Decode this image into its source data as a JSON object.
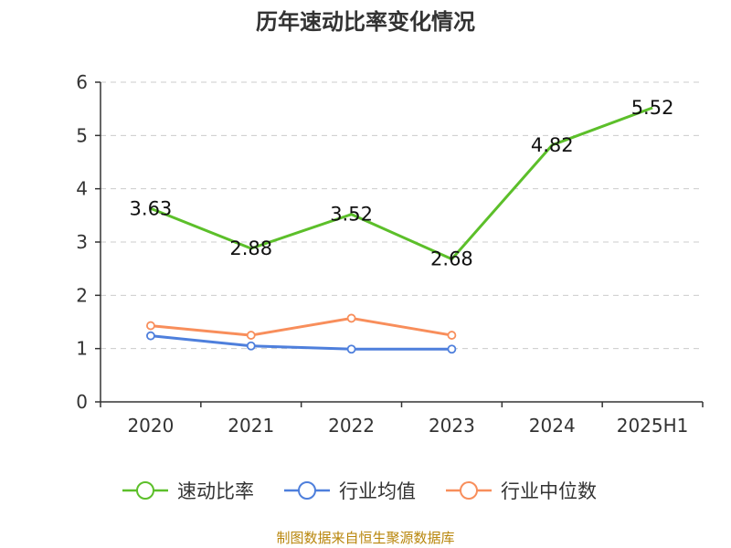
{
  "title": "历年速动比率变化情况",
  "source_note": "制图数据来自恒生聚源数据库",
  "colors": {
    "速动比率": "#5cbf2a",
    "行业均值": "#4e7fdc",
    "行业中位数": "#f88e5b",
    "grid": "#cccccc",
    "axis": "#333333"
  },
  "chart_data": {
    "type": "line",
    "title": "历年速动比率变化情况",
    "categories": [
      "2020",
      "2021",
      "2022",
      "2023",
      "2024",
      "2025H1"
    ],
    "ylim": [
      0,
      6
    ],
    "yticks": [
      0,
      1,
      2,
      3,
      4,
      5,
      6
    ],
    "grid": true,
    "legend_position": "bottom",
    "series": [
      {
        "name": "速动比率",
        "values": [
          3.63,
          2.88,
          3.52,
          2.68,
          4.82,
          5.52
        ],
        "labels": [
          "3.63",
          "2.88",
          "3.52",
          "2.68",
          "4.82",
          "5.52"
        ],
        "show_markers": false
      },
      {
        "name": "行业均值",
        "values": [
          1.24,
          1.05,
          0.99,
          0.99,
          null,
          null
        ],
        "show_markers": true
      },
      {
        "name": "行业中位数",
        "values": [
          1.43,
          1.25,
          1.57,
          1.25,
          null,
          null
        ],
        "show_markers": true
      }
    ]
  }
}
